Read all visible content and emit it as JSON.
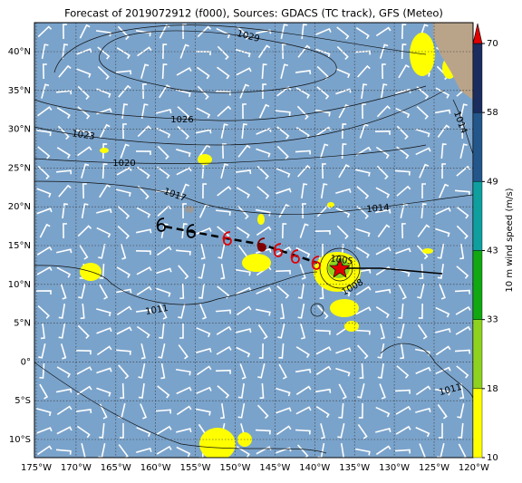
{
  "title": "Forecast of 2019072912 (f000), Sources: GDACS (TC track), GFS (Meteo)",
  "map": {
    "lon_labels": [
      "175°W",
      "170°W",
      "165°W",
      "160°W",
      "155°W",
      "150°W",
      "145°W",
      "140°W",
      "135°W",
      "130°W",
      "125°W",
      "120°W"
    ],
    "lat_labels": [
      "40°N",
      "35°N",
      "30°N",
      "25°N",
      "20°N",
      "15°N",
      "10°N",
      "5°N",
      "0°",
      "5°S",
      "10°S"
    ],
    "contour_labels": [
      "1029",
      "1026",
      "1023",
      "1020",
      "1017",
      "1014",
      "1005",
      "1008",
      "1011",
      "1011",
      "1014"
    ]
  },
  "colorbar": {
    "label": "10 m wind speed (m/s)",
    "ticks": [
      10,
      18,
      33,
      43,
      49,
      58,
      70
    ],
    "colors": [
      "#ffff00",
      "#8fd11f",
      "#12a812",
      "#0f9f9f",
      "#23568a",
      "#1b2c5e"
    ],
    "extend_color": "#e00000"
  }
}
